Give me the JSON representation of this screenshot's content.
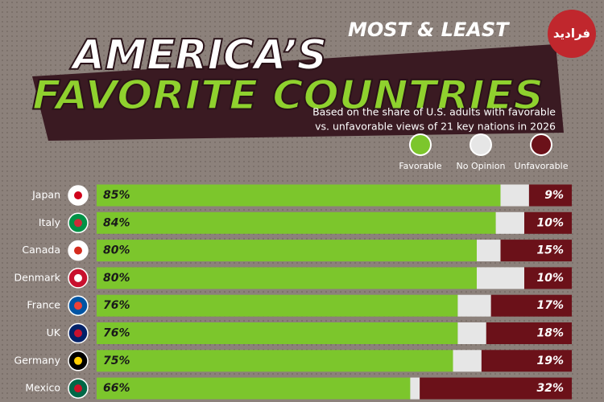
{
  "logo": "فرادید",
  "chart_data": {
    "type": "bar",
    "title_line1": "AMERICA’S",
    "title_tag": "MOST & LEAST",
    "title_line2": "FAVORITE COUNTRIES",
    "subtitle_line1": "Based on the share of U.S. adults with favorable",
    "subtitle_line2": "vs. unfavorable views of 21 key nations in 2026",
    "categories": [
      "Japan",
      "Italy",
      "Canada",
      "Denmark",
      "France",
      "UK",
      "Germany",
      "Mexico"
    ],
    "xlim": [
      0,
      100
    ],
    "series": [
      {
        "name": "Favorable",
        "color": "#7cc62c",
        "values": [
          85,
          84,
          80,
          80,
          76,
          76,
          75,
          66
        ],
        "value_labels": [
          "85%",
          "84%",
          "80%",
          "80%",
          "76%",
          "76%",
          "75%",
          "66%"
        ]
      },
      {
        "name": "No Opinion",
        "color": "#e6e6e6",
        "values": [
          6,
          6,
          5,
          10,
          7,
          6,
          6,
          2
        ]
      },
      {
        "name": "Unfavorable",
        "color": "#6b1119",
        "values": [
          9,
          10,
          15,
          10,
          17,
          18,
          19,
          32
        ],
        "value_labels": [
          "9%",
          "10%",
          "15%",
          "10%",
          "17%",
          "18%",
          "19%",
          "32%"
        ]
      }
    ]
  }
}
